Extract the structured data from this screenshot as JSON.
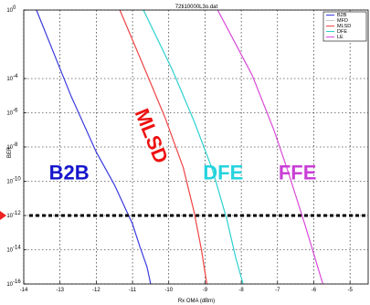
{
  "chart_data": {
    "type": "line",
    "title": "72ti10000L3o.dat",
    "xlabel": "Rx OMA (dBm)",
    "ylabel": "BER",
    "xlim": [
      -14,
      -4.5
    ],
    "ylim_exponent": [
      -16,
      0
    ],
    "yscale": "log",
    "grid": true,
    "legend_position": "top-right",
    "x_ticks": [
      {
        "value": -14,
        "label": "-14"
      },
      {
        "value": -13,
        "label": "-13"
      },
      {
        "value": -12,
        "label": "-12"
      },
      {
        "value": -11,
        "label": "-11"
      },
      {
        "value": -10,
        "label": "-10"
      },
      {
        "value": -9,
        "label": "-9"
      },
      {
        "value": -8,
        "label": "-8"
      },
      {
        "value": -7,
        "label": "-7"
      },
      {
        "value": -6,
        "label": "-6"
      },
      {
        "value": -5,
        "label": "-5"
      }
    ],
    "y_ticks": [
      {
        "exponent": 0,
        "label": "10",
        "sup": "0"
      },
      {
        "exponent": -4,
        "label": "10",
        "sup": "-4"
      },
      {
        "exponent": -6,
        "label": "10",
        "sup": "-6"
      },
      {
        "exponent": -8,
        "label": "10",
        "sup": "-8"
      },
      {
        "exponent": -10,
        "label": "10",
        "sup": "-10"
      },
      {
        "exponent": -12,
        "label": "10",
        "sup": "-12"
      },
      {
        "exponent": -14,
        "label": "10",
        "sup": "-14"
      },
      {
        "exponent": -16,
        "label": "10",
        "sup": "-16"
      }
    ],
    "threshold_exponent": -12,
    "series": [
      {
        "name": "B2B",
        "color": "#3b3bdf",
        "x": [
          -13.65,
          -12.7,
          -12.0,
          -11.5,
          -11.0,
          -10.8,
          -10.6,
          -10.5
        ],
        "exponent": [
          0,
          -5,
          -8.3,
          -10.2,
          -12.5,
          -13.8,
          -15.0,
          -16
        ]
      },
      {
        "name": "MFD",
        "color": "#c8c8c8",
        "x": [],
        "exponent": []
      },
      {
        "name": "MLSD",
        "color": "#ef4444",
        "x": [
          -11.35,
          -10.65,
          -10.1,
          -9.6,
          -9.3,
          -9.1,
          -8.95
        ],
        "exponent": [
          0,
          -3.5,
          -6.3,
          -9.2,
          -11.8,
          -14.0,
          -16
        ]
      },
      {
        "name": "DFE",
        "color": "#2ed0d0",
        "x": [
          -10.7,
          -9.9,
          -9.3,
          -8.8,
          -8.4,
          -8.15,
          -7.95
        ],
        "exponent": [
          0,
          -3.5,
          -6.5,
          -9.3,
          -12.2,
          -14.5,
          -16
        ]
      },
      {
        "name": "LE",
        "color": "#d94ad9",
        "x": [
          -8.65,
          -7.7,
          -7.1,
          -6.7,
          -6.25,
          -5.95,
          -5.75
        ],
        "exponent": [
          0,
          -3.8,
          -7.0,
          -9.5,
          -12.5,
          -14.6,
          -16
        ]
      }
    ],
    "annotations": [
      {
        "text": "B2B",
        "color": "#1515cc",
        "x": -12.75,
        "exponent": -9.9,
        "rotate": 0
      },
      {
        "text": "MLSD",
        "color": "#ee1111",
        "x": -10.65,
        "exponent": -7.5,
        "rotate": 68
      },
      {
        "text": "DFE",
        "color": "#25d3de",
        "x": -8.5,
        "exponent": -9.9,
        "rotate": 0
      },
      {
        "text": "FFE",
        "color": "#c93fd6",
        "x": -6.45,
        "exponent": -9.9,
        "rotate": 0
      }
    ],
    "marker": {
      "color": "#ee2222"
    }
  }
}
